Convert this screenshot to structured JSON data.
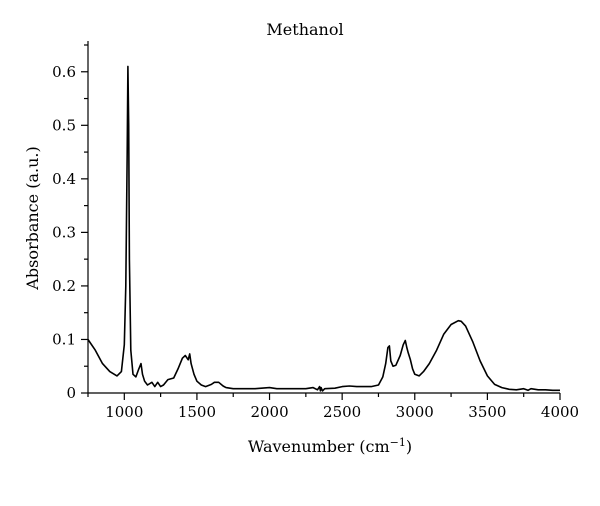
{
  "chart_data": {
    "type": "line",
    "title": "Methanol",
    "xlabel": "Wavenumber (cm",
    "xlabel_sup": "−1",
    "xlabel_suffix": ")",
    "ylabel": "Absorbance (a.u.)",
    "xlim": [
      750,
      4000
    ],
    "ylim": [
      0,
      0.65
    ],
    "x_ticks": [
      1000,
      1500,
      2000,
      2500,
      3000,
      3500,
      4000
    ],
    "x_tick_labels": [
      "1000",
      "1500",
      "2000",
      "2500",
      "3000",
      "3500",
      "4000"
    ],
    "y_ticks": [
      0,
      0.1,
      0.2,
      0.3,
      0.4,
      0.5,
      0.6
    ],
    "y_tick_labels": [
      "0",
      "0.1",
      "0.2",
      "0.3",
      "0.4",
      "0.5",
      "0.6"
    ],
    "grid": false,
    "legend": "none",
    "series": [
      {
        "x": [
          750,
          800,
          850,
          900,
          950,
          980,
          1000,
          1010,
          1020,
          1025,
          1030,
          1035,
          1045,
          1060,
          1080,
          1100,
          1115,
          1125,
          1140,
          1160,
          1190,
          1210,
          1230,
          1250,
          1270,
          1300,
          1340,
          1370,
          1400,
          1420,
          1440,
          1450,
          1460,
          1480,
          1500,
          1530,
          1560,
          1600,
          1620,
          1650,
          1680,
          1700,
          1750,
          1800,
          1900,
          2000,
          2050,
          2080,
          2150,
          2250,
          2300,
          2330,
          2345,
          2350,
          2355,
          2365,
          2380,
          2450,
          2500,
          2550,
          2600,
          2650,
          2700,
          2750,
          2780,
          2800,
          2815,
          2825,
          2835,
          2850,
          2870,
          2900,
          2920,
          2935,
          2945,
          2955,
          2970,
          2985,
          3000,
          3030,
          3060,
          3100,
          3150,
          3200,
          3250,
          3300,
          3320,
          3350,
          3400,
          3450,
          3500,
          3550,
          3600,
          3650,
          3700,
          3750,
          3780,
          3800,
          3850,
          3900,
          3950,
          4000
        ],
        "y": [
          0.1,
          0.08,
          0.055,
          0.04,
          0.032,
          0.04,
          0.09,
          0.2,
          0.45,
          0.61,
          0.5,
          0.25,
          0.08,
          0.035,
          0.03,
          0.045,
          0.055,
          0.035,
          0.022,
          0.015,
          0.02,
          0.012,
          0.02,
          0.012,
          0.015,
          0.025,
          0.028,
          0.045,
          0.065,
          0.07,
          0.062,
          0.073,
          0.055,
          0.035,
          0.022,
          0.015,
          0.012,
          0.016,
          0.02,
          0.02,
          0.013,
          0.01,
          0.008,
          0.008,
          0.008,
          0.01,
          0.008,
          0.008,
          0.008,
          0.008,
          0.01,
          0.006,
          0.012,
          0.004,
          0.01,
          0.004,
          0.008,
          0.009,
          0.012,
          0.013,
          0.012,
          0.012,
          0.012,
          0.015,
          0.03,
          0.055,
          0.085,
          0.088,
          0.06,
          0.05,
          0.052,
          0.07,
          0.09,
          0.098,
          0.085,
          0.075,
          0.062,
          0.045,
          0.035,
          0.032,
          0.04,
          0.055,
          0.08,
          0.11,
          0.128,
          0.135,
          0.134,
          0.125,
          0.095,
          0.06,
          0.032,
          0.016,
          0.01,
          0.007,
          0.006,
          0.008,
          0.005,
          0.008,
          0.006,
          0.006,
          0.005,
          0.005
        ]
      }
    ]
  }
}
